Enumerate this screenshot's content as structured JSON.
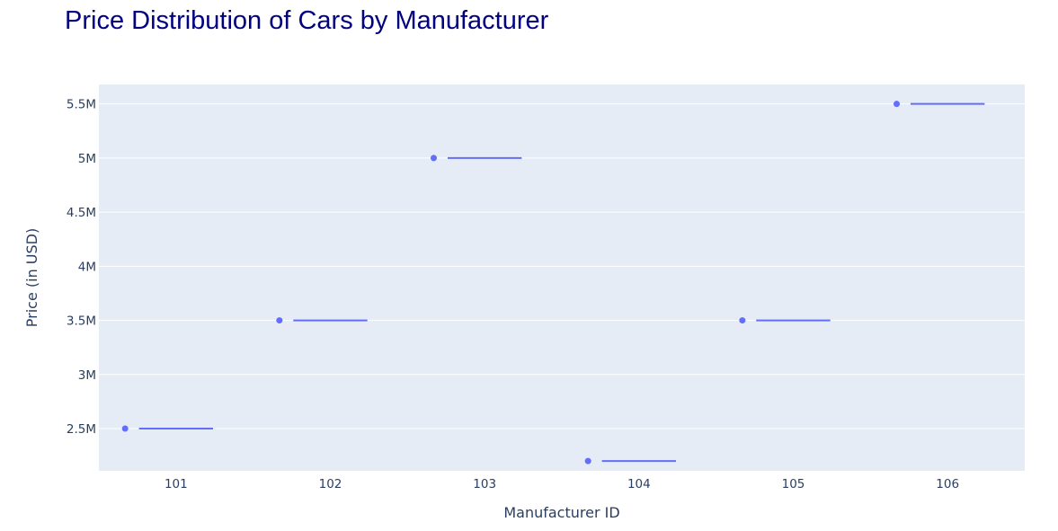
{
  "chart_data": {
    "type": "box",
    "title": "Price Distribution of Cars by Manufacturer",
    "xlabel": "Manufacturer ID",
    "ylabel": "Price (in USD)",
    "categories": [
      "101",
      "102",
      "103",
      "104",
      "105",
      "106"
    ],
    "values": [
      2500000,
      3500000,
      5000000,
      2200000,
      3500000,
      5500000
    ],
    "ylim": [
      2110000,
      5680000
    ],
    "yticks": [
      {
        "value": 2500000,
        "label": "2.5M"
      },
      {
        "value": 3000000,
        "label": "3M"
      },
      {
        "value": 3500000,
        "label": "3.5M"
      },
      {
        "value": 4000000,
        "label": "4M"
      },
      {
        "value": 4500000,
        "label": "4.5M"
      },
      {
        "value": 5000000,
        "label": "5M"
      },
      {
        "value": 5500000,
        "label": "5.5M"
      }
    ],
    "grid": true,
    "colors": {
      "series": "#636efa",
      "plot_bg": "#e5ecf6",
      "grid": "#ffffff",
      "title": "#000080",
      "text": "#2a3f5f"
    }
  }
}
